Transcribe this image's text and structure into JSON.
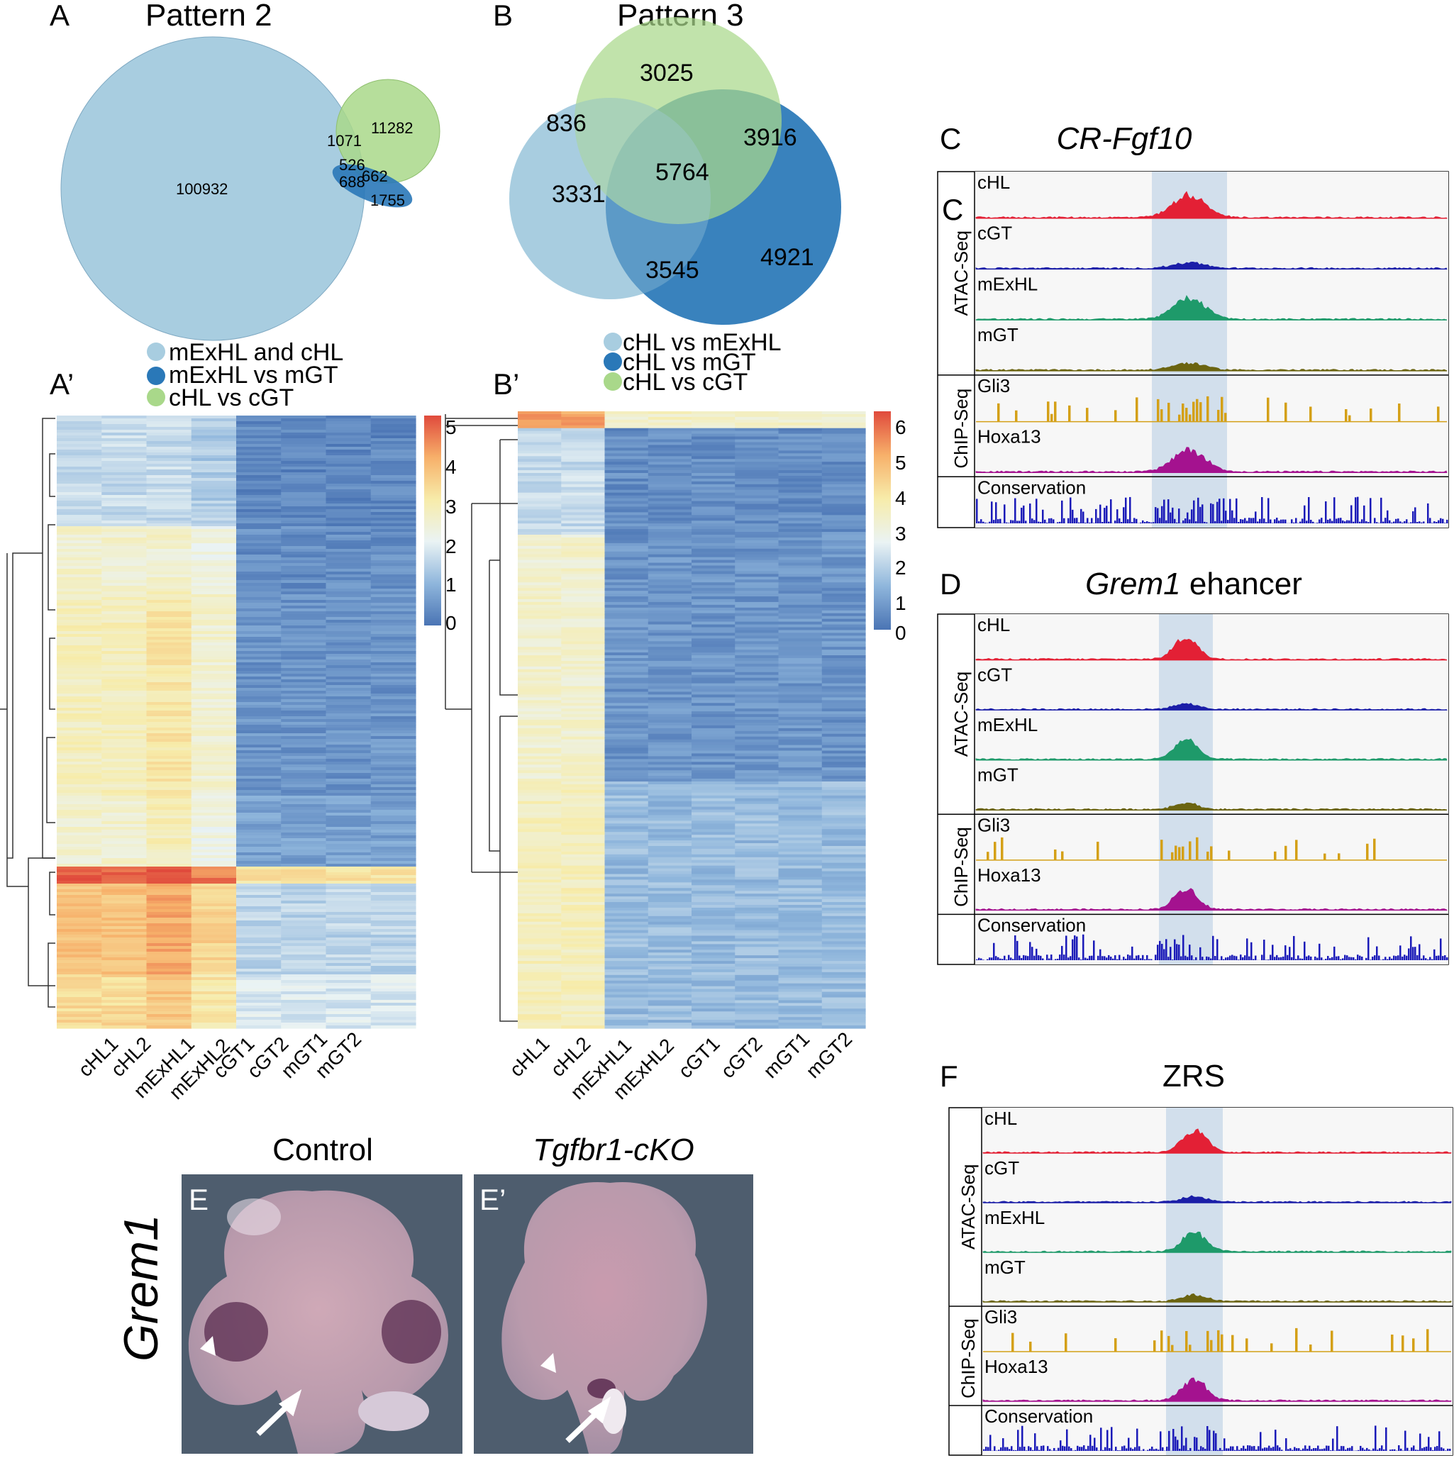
{
  "panels": {
    "A": "A",
    "A_prime": "A’",
    "B": "B",
    "B_prime": "B’",
    "C": "C",
    "C_inner": "C",
    "D": "D",
    "F": "F",
    "E": "E",
    "E_prime": "E’"
  },
  "venn_a": {
    "title": "Pattern 2",
    "numbers": [
      "100932",
      "11282",
      "1071",
      "526",
      "662",
      "688",
      "1755"
    ],
    "legend": [
      "mExHL and cHL",
      "mExHL vs mGT",
      "cHL vs cGT"
    ],
    "colors": [
      "#a8cde0",
      "#2a78b8",
      "#a9d88a"
    ]
  },
  "venn_b": {
    "title": "Pattern 3",
    "numbers": [
      "3025",
      "836",
      "3916",
      "5764",
      "3331",
      "4921",
      "3545"
    ],
    "legend": [
      "cHL vs mExHL",
      "cHL vs mGT",
      "cHL vs cGT"
    ],
    "colors": [
      "#a8cde0",
      "#2a78b8",
      "#a9d88a"
    ]
  },
  "heatmap_a": {
    "samples": [
      "cHL1",
      "cHL2",
      "mExHL1",
      "mExHL2",
      "cGT1",
      "cGT2",
      "mGT1",
      "mGT2"
    ],
    "scale_ticks": [
      "5",
      "4",
      "3",
      "2",
      "1",
      "0"
    ]
  },
  "heatmap_b": {
    "samples": [
      "cHL1",
      "cHL2",
      "mExHL1",
      "mExHL2",
      "cGT1",
      "cGT2",
      "mGT1",
      "mGT2"
    ],
    "scale_ticks": [
      "6",
      "5",
      "4",
      "3",
      "2",
      "1",
      "0"
    ]
  },
  "browser_c": {
    "title": "CR-Fgf10",
    "tracks": [
      "cHL",
      "cGT",
      "mExHL",
      "mGT",
      "Gli3",
      "Hoxa13",
      "Conservation"
    ],
    "groups": [
      "ATAC-Seq",
      "ChIP-Seq"
    ]
  },
  "browser_d": {
    "title_gene": "Grem1",
    "title_rest": " ehancer",
    "tracks": [
      "cHL",
      "cGT",
      "mExHL",
      "mGT",
      "Gli3",
      "Hoxa13",
      "Conservation"
    ],
    "groups": [
      "ATAC-Seq",
      "ChIP-Seq"
    ]
  },
  "browser_f": {
    "title": "ZRS",
    "tracks": [
      "cHL",
      "cGT",
      "mExHL",
      "mGT",
      "Gli3",
      "Hoxa13",
      "Conservation"
    ],
    "groups": [
      "ATAC-Seq",
      "ChIP-Seq"
    ]
  },
  "panel_e": {
    "control": "Control",
    "mutant": "Tgfbr1-cKO",
    "gene": "Grem1"
  },
  "track_colors": {
    "cHL": "#e32035",
    "cGT": "#1b1ea8",
    "mExHL": "#1e9a6a",
    "mGT": "#6b6410",
    "Gli3": "#d4a017",
    "Hoxa13": "#a4128f",
    "Conservation": "#1a1ab8"
  }
}
